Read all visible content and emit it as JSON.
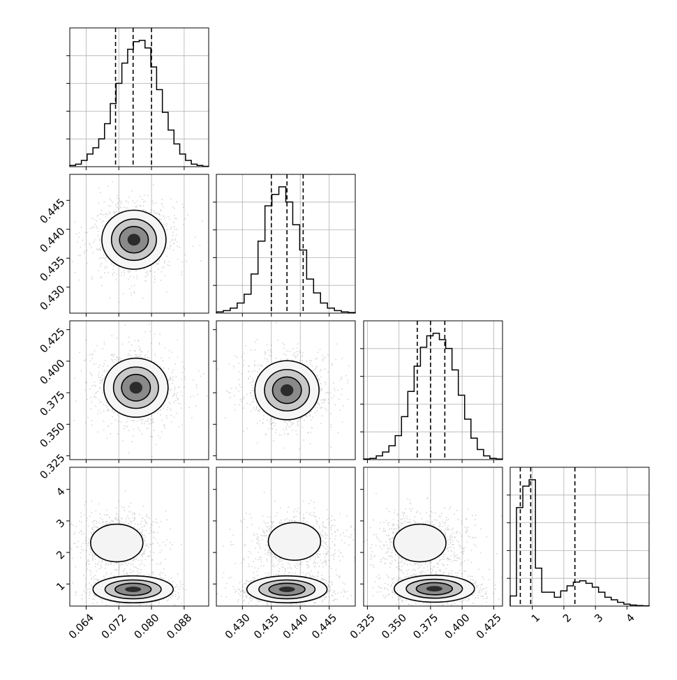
{
  "chart_data": {
    "type": "corner",
    "title": "",
    "grid": true,
    "n_params": 4,
    "params": [
      {
        "range": [
          0.06,
          0.094
        ],
        "ticks": [
          "0.064",
          "0.072",
          "0.080",
          "0.088"
        ],
        "quantiles": [
          0.0712,
          0.0755,
          0.08
        ],
        "hist": [
          0.01,
          0.02,
          0.05,
          0.1,
          0.15,
          0.22,
          0.34,
          0.5,
          0.66,
          0.82,
          0.93,
          0.99,
          1.0,
          0.94,
          0.79,
          0.61,
          0.43,
          0.29,
          0.18,
          0.1,
          0.05,
          0.02,
          0.01,
          0.003
        ],
        "peak": 0.0765,
        "cov_sd": 0.0045
      },
      {
        "range": [
          0.4255,
          0.4495
        ],
        "ticks": [
          "0.430",
          "0.435",
          "0.440",
          "0.445"
        ],
        "quantiles": [
          0.435,
          0.4377,
          0.4405
        ],
        "hist": [
          0.01,
          0.02,
          0.04,
          0.08,
          0.15,
          0.31,
          0.57,
          0.85,
          0.94,
          1.0,
          0.88,
          0.7,
          0.5,
          0.27,
          0.16,
          0.08,
          0.04,
          0.02,
          0.01,
          0.005
        ],
        "peak": 0.4378,
        "cov_sd": 0.0028
      },
      {
        "range": [
          0.322,
          0.432
        ],
        "ticks": [
          "0.325",
          "0.350",
          "0.375",
          "0.400",
          "0.425"
        ],
        "quantiles": [
          0.3645,
          0.375,
          0.3863
        ],
        "hist": [
          0.005,
          0.01,
          0.03,
          0.06,
          0.11,
          0.19,
          0.34,
          0.54,
          0.74,
          0.89,
          0.98,
          1.0,
          0.95,
          0.88,
          0.71,
          0.51,
          0.32,
          0.17,
          0.08,
          0.03,
          0.01,
          0.005
        ],
        "peak": 0.3755,
        "cov_sd": 0.011
      },
      {
        "range": [
          0.3,
          4.7
        ],
        "ticks": [
          "1",
          "2",
          "3",
          "4"
        ],
        "quantiles": [
          0.62,
          0.95,
          2.35
        ],
        "hist": [
          0.08,
          0.78,
          0.95,
          1.0,
          0.3,
          0.11,
          0.11,
          0.07,
          0.12,
          0.16,
          0.19,
          0.2,
          0.18,
          0.15,
          0.11,
          0.07,
          0.05,
          0.03,
          0.015,
          0.008,
          0.004,
          0.002
        ],
        "modes": [
          {
            "x": 0.8,
            "weight": 0.55
          },
          {
            "x": 2.3,
            "weight": 0.45
          }
        ]
      }
    ],
    "pair_peaks": {
      "1-0": [
        [
          0.0757,
          0.4382
        ]
      ],
      "2-0": [
        [
          0.0762,
          0.379
        ]
      ],
      "2-1": [
        [
          0.4377,
          0.377
        ]
      ],
      "3-0": [
        [
          0.0755,
          0.83
        ],
        [
          0.0715,
          2.3
        ]
      ],
      "3-1": [
        [
          0.4377,
          0.83
        ],
        [
          0.439,
          2.35
        ]
      ],
      "3-2": [
        [
          0.378,
          0.85
        ],
        [
          0.3665,
          2.3
        ]
      ]
    }
  }
}
